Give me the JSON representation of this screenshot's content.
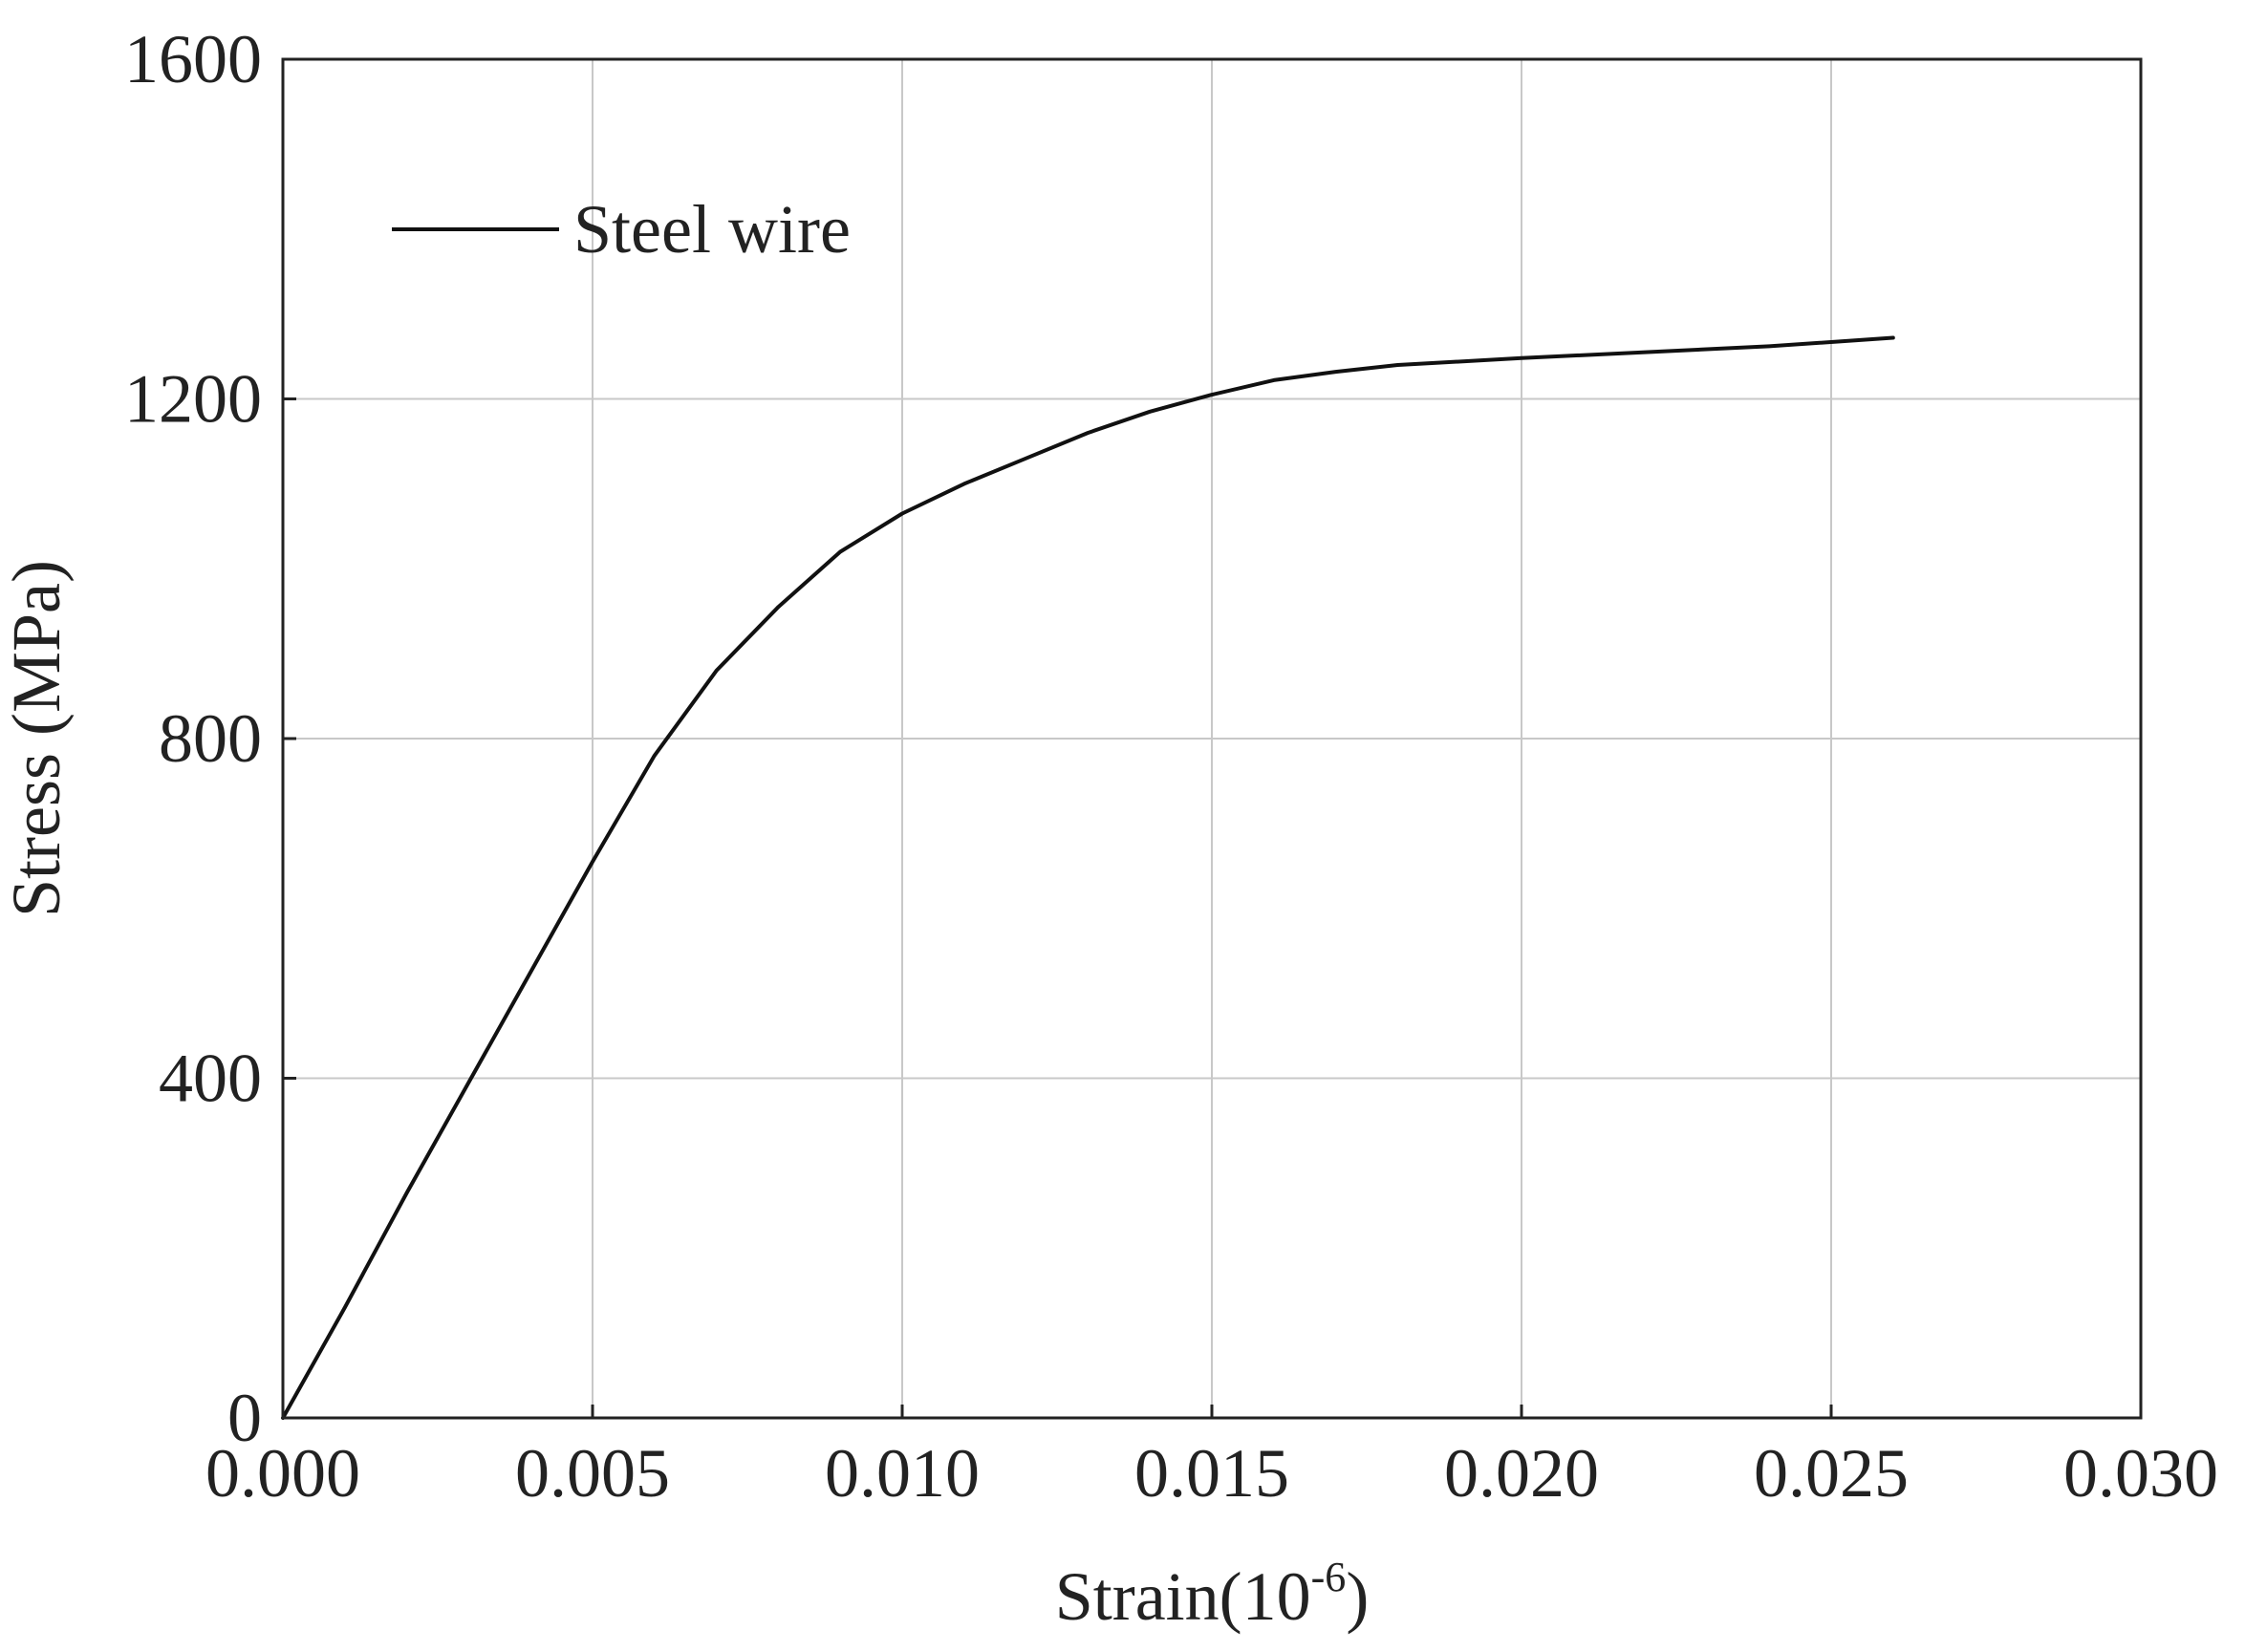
{
  "chart_data": {
    "type": "line",
    "title": "",
    "xlabel": "Strain(10",
    "xlabel_superscript": "-6",
    "xlabel_suffix": ")",
    "ylabel": "Stress (MPa)",
    "xlim": [
      0,
      0.03
    ],
    "ylim": [
      0,
      1600
    ],
    "xticks": [
      0,
      0.005,
      0.01,
      0.015,
      0.02,
      0.025,
      0.03
    ],
    "xtick_labels": [
      "0.000",
      "0.005",
      "0.010",
      "0.015",
      "0.020",
      "0.025",
      "0.030"
    ],
    "yticks": [
      0,
      400,
      800,
      1200,
      1600
    ],
    "ytick_labels": [
      "0",
      "400",
      "800",
      "1200",
      "1600"
    ],
    "grid": true,
    "legend_position": "top-left",
    "series": [
      {
        "name": "Steel wire",
        "color": "#111111",
        "x": [
          0,
          0.001,
          0.002,
          0.003,
          0.004,
          0.005,
          0.006,
          0.007,
          0.008,
          0.009,
          0.01,
          0.011,
          0.012,
          0.013,
          0.014,
          0.015,
          0.016,
          0.017,
          0.018,
          0.02,
          0.022,
          0.024,
          0.026
        ],
        "y": [
          0,
          130,
          265,
          395,
          525,
          655,
          780,
          880,
          955,
          1020,
          1065,
          1100,
          1130,
          1160,
          1185,
          1205,
          1222,
          1232,
          1240,
          1248,
          1255,
          1262,
          1272
        ]
      }
    ]
  }
}
